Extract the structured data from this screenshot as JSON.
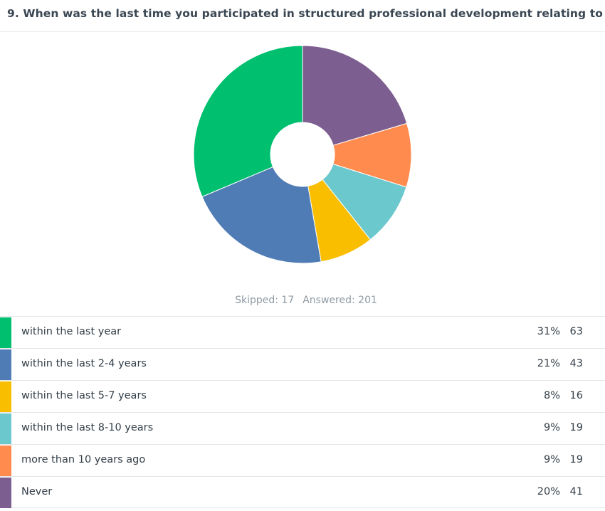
{
  "question": {
    "title": "9. When was the last time you participated in structured professional development relating to"
  },
  "summary": {
    "skipped": "Skipped: 17",
    "answered": "Answered: 201"
  },
  "colors": {
    "within the last year": "#00bf6f",
    "within the last 2-4 years": "#507cb6",
    "within the last 5-7 years": "#f9be00",
    "within the last 8-10 years": "#6bc8cd",
    "more than 10 years ago": "#ff8b4f",
    "Never": "#7d5e90"
  },
  "chart_data": {
    "type": "pie",
    "style": "donut",
    "categories": [
      "within the last year",
      "within the last 2-4 years",
      "within the last 5-7 years",
      "within the last 8-10 years",
      "more than 10 years ago",
      "Never"
    ],
    "values": [
      63,
      43,
      16,
      19,
      19,
      41
    ],
    "percentages": [
      "31%",
      "21%",
      "8%",
      "9%",
      "9%",
      "20%"
    ],
    "counts": [
      "63",
      "43",
      "16",
      "19",
      "19",
      "41"
    ],
    "colors": [
      "#00bf6f",
      "#507cb6",
      "#f9be00",
      "#6bc8cd",
      "#ff8b4f",
      "#7d5e90"
    ],
    "slice_order_clockwise_from_top": [
      "Never",
      "more than 10 years ago",
      "within the last 8-10 years",
      "within the last 5-7 years",
      "within the last 2-4 years",
      "within the last year"
    ],
    "legend": "table below chart"
  }
}
